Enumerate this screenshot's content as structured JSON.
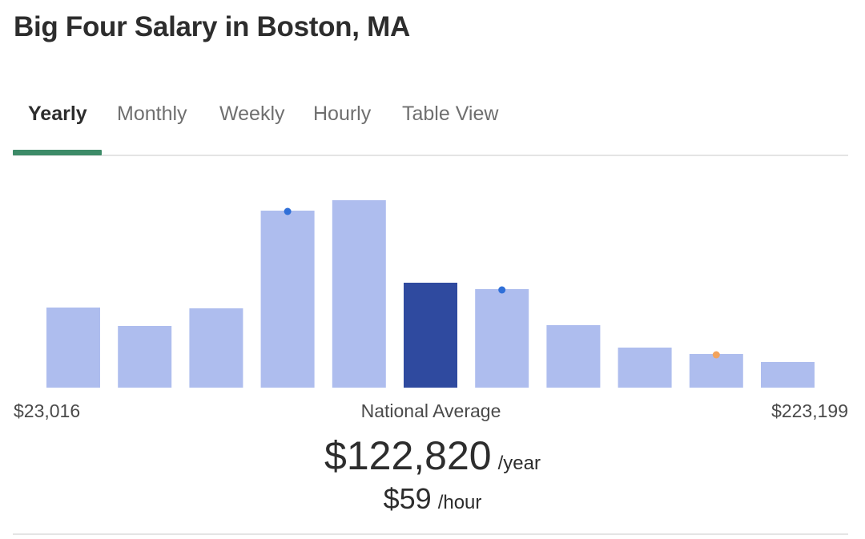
{
  "title": "Big Four Salary in Boston, MA",
  "tabs": [
    {
      "label": "Yearly",
      "active": true
    },
    {
      "label": "Monthly",
      "active": false
    },
    {
      "label": "Weekly",
      "active": false
    },
    {
      "label": "Hourly",
      "active": false
    },
    {
      "label": "Table View",
      "active": false
    }
  ],
  "colors": {
    "accent": "#3d8b68",
    "bar": "#aebdee",
    "bar_highlight": "#2f4a9f",
    "marker_blue": "#2f6fd8",
    "marker_orange": "#f2a35c"
  },
  "salary": {
    "min_label": "$23,016",
    "max_label": "$223,199",
    "national_average_label": "National Average",
    "yearly_value": "$122,820",
    "yearly_unit": "/year",
    "hourly_value": "$59",
    "hourly_unit": "/hour"
  },
  "chart_data": {
    "type": "bar",
    "bar_values": [
      100,
      77,
      99,
      221,
      234,
      131,
      123,
      78,
      50,
      42,
      32
    ],
    "highlight_index": 5,
    "markers": [
      {
        "bar": 3,
        "color": "blue"
      },
      {
        "bar": 6,
        "color": "blue"
      },
      {
        "bar": 9,
        "color": "orange"
      }
    ]
  }
}
